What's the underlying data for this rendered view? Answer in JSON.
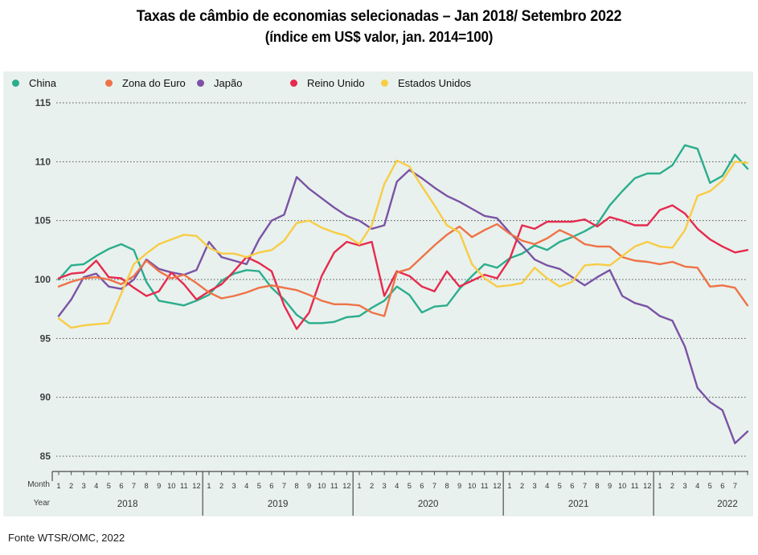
{
  "title": {
    "line1": "Taxas de câmbio de economias selecionadas – Jan 2018/ Setembro 2022",
    "line2": "(índice em US$ valor, jan. 2014=100)"
  },
  "legend": {
    "items": [
      {
        "label": "China",
        "color": "#2BAD8D"
      },
      {
        "label": "Zona do Euro",
        "color": "#EF7246"
      },
      {
        "label": "Japão",
        "color": "#7B52A5"
      },
      {
        "label": "Reino Unido",
        "color": "#E62A4F"
      },
      {
        "label": "Estados Unidos",
        "color": "#F8CC45"
      }
    ]
  },
  "axis_labels": {
    "month": "Month",
    "year": "Year"
  },
  "footer": {
    "text": "Fonte WTSR/OMC, 2022"
  },
  "chart_data": {
    "type": "line",
    "title": "Taxas de câmbio de economias selecionadas – Jan 2018/ Setembro 2022 (índice em US$ valor, jan. 2014=100)",
    "ylim": [
      85,
      115
    ],
    "yticks": [
      85,
      90,
      95,
      100,
      105,
      110,
      115
    ],
    "grid": "dotted horizontal",
    "legend_position": "top-left",
    "background_color": "#e8f1ed",
    "gridline_color": "#5a5a5a",
    "x_axis": {
      "month_row_label": "Month",
      "year_row_label": "Year",
      "years": [
        {
          "label": "2018",
          "months": [
            "1",
            "2",
            "3",
            "4",
            "5",
            "6",
            "7",
            "8",
            "9",
            "10",
            "11",
            "12"
          ]
        },
        {
          "label": "2019",
          "months": [
            "1",
            "2",
            "3",
            "4",
            "5",
            "6",
            "7",
            "8",
            "9",
            "10",
            "11",
            "12"
          ]
        },
        {
          "label": "2020",
          "months": [
            "1",
            "2",
            "3",
            "4",
            "5",
            "6",
            "7",
            "8",
            "9",
            "10",
            "11",
            "12"
          ]
        },
        {
          "label": "2021",
          "months": [
            "1",
            "2",
            "3",
            "4",
            "5",
            "6",
            "7",
            "8",
            "9",
            "10",
            "11",
            "12"
          ]
        },
        {
          "label": "2022",
          "months": [
            "1",
            "2",
            "3",
            "4",
            "5",
            "6",
            "7"
          ],
          "extra_unlabeled_ticks": 1
        }
      ]
    },
    "series": [
      {
        "name": "China",
        "color": "#2BAD8D",
        "values": [
          100.0,
          101.2,
          101.3,
          102.0,
          102.6,
          103.0,
          102.5,
          99.8,
          98.2,
          98.0,
          97.8,
          98.2,
          98.7,
          99.9,
          100.5,
          100.8,
          100.7,
          99.3,
          98.3,
          97.0,
          96.3,
          96.3,
          96.4,
          96.8,
          96.9,
          97.6,
          98.2,
          99.4,
          98.7,
          97.2,
          97.7,
          97.8,
          99.2,
          100.3,
          101.3,
          101.0,
          101.8,
          102.2,
          102.9,
          102.5,
          103.2,
          103.6,
          104.1,
          104.7,
          106.3,
          107.5,
          108.6,
          109.0,
          109.0,
          109.7,
          111.4,
          111.1,
          108.2,
          108.8,
          110.6,
          109.4
        ]
      },
      {
        "name": "Zona do Euro",
        "color": "#EF7246",
        "values": [
          99.4,
          99.8,
          100.1,
          100.2,
          100.0,
          99.6,
          100.3,
          101.6,
          100.7,
          100.1,
          100.4,
          99.7,
          98.9,
          98.4,
          98.6,
          98.9,
          99.3,
          99.5,
          99.3,
          99.1,
          98.7,
          98.2,
          97.9,
          97.9,
          97.8,
          97.2,
          96.9,
          100.6,
          100.9,
          101.9,
          102.9,
          103.8,
          104.5,
          103.6,
          104.2,
          104.7,
          103.9,
          103.3,
          103.0,
          103.5,
          104.2,
          103.7,
          103.0,
          102.8,
          102.8,
          101.9,
          101.6,
          101.5,
          101.3,
          101.5,
          101.1,
          101.0,
          99.4,
          99.5,
          99.3,
          97.8
        ]
      },
      {
        "name": "Japão",
        "color": "#7B52A5",
        "values": [
          96.9,
          98.3,
          100.2,
          100.5,
          99.4,
          99.2,
          100.0,
          101.7,
          100.9,
          100.6,
          100.4,
          100.8,
          103.2,
          101.9,
          101.6,
          101.3,
          103.4,
          105.0,
          105.5,
          108.7,
          107.7,
          106.9,
          106.1,
          105.4,
          105.0,
          104.3,
          104.6,
          108.3,
          109.3,
          108.6,
          107.8,
          107.1,
          106.6,
          106.0,
          105.4,
          105.2,
          104.0,
          102.9,
          101.7,
          101.2,
          100.9,
          100.2,
          99.5,
          100.2,
          100.8,
          98.6,
          98.0,
          97.7,
          96.9,
          96.5,
          94.3,
          90.8,
          89.6,
          88.9,
          86.1,
          87.1
        ]
      },
      {
        "name": "Reino Unido",
        "color": "#E62A4F",
        "values": [
          100.1,
          100.5,
          100.6,
          101.6,
          100.2,
          100.1,
          99.3,
          98.6,
          99.0,
          100.6,
          99.6,
          98.3,
          99.0,
          99.6,
          100.7,
          101.9,
          101.4,
          100.7,
          97.8,
          95.8,
          97.2,
          100.3,
          102.3,
          103.2,
          102.9,
          103.2,
          98.6,
          100.7,
          100.3,
          99.4,
          99.0,
          100.7,
          99.4,
          99.9,
          100.4,
          100.1,
          101.7,
          104.6,
          104.3,
          104.9,
          104.9,
          104.9,
          105.1,
          104.5,
          105.3,
          105.0,
          104.6,
          104.6,
          105.9,
          106.3,
          105.6,
          104.3,
          103.4,
          102.8,
          102.3,
          102.5
        ]
      },
      {
        "name": "Estados Unidos",
        "color": "#F8CC45",
        "values": [
          96.7,
          95.9,
          96.1,
          96.2,
          96.3,
          98.8,
          101.3,
          102.2,
          103.0,
          103.4,
          103.8,
          103.7,
          102.7,
          102.2,
          102.2,
          101.9,
          102.3,
          102.5,
          103.3,
          104.8,
          105.0,
          104.4,
          104.0,
          103.7,
          103.0,
          104.6,
          108.1,
          110.1,
          109.6,
          107.9,
          106.3,
          104.6,
          104.0,
          101.3,
          100.1,
          99.4,
          99.5,
          99.7,
          101.0,
          100.1,
          99.4,
          99.8,
          101.2,
          101.3,
          101.2,
          102.0,
          102.8,
          103.2,
          102.8,
          102.7,
          104.2,
          107.1,
          107.5,
          108.4,
          110.0,
          109.9
        ]
      }
    ]
  }
}
